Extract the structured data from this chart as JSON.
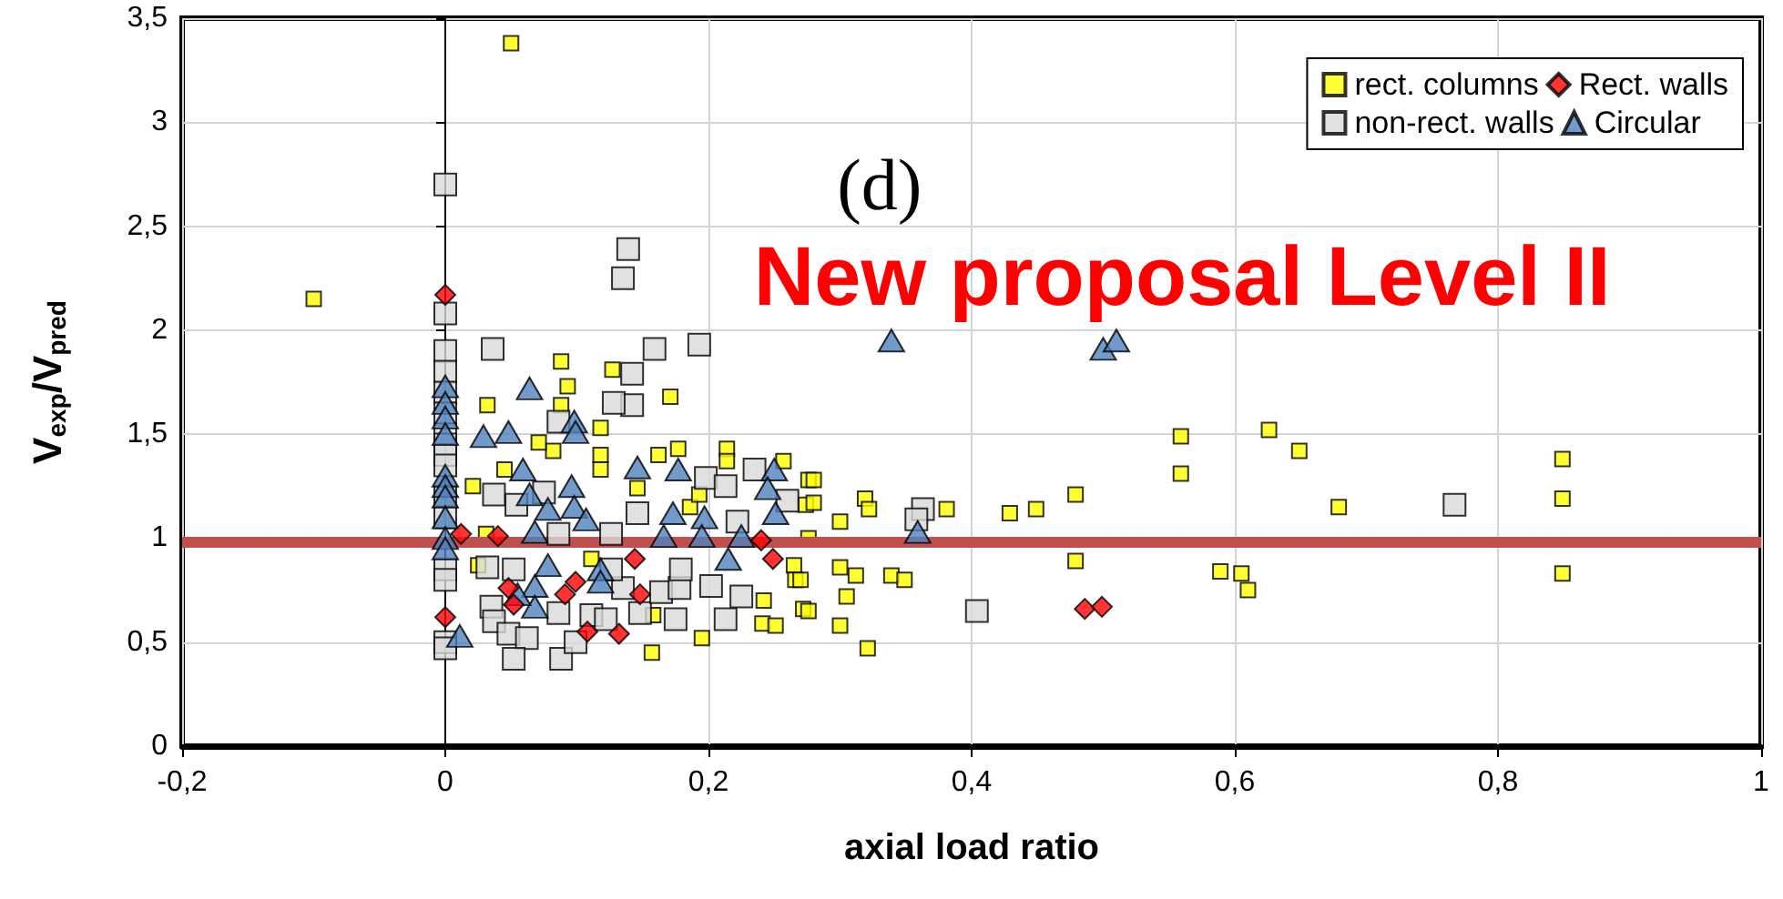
{
  "chart_data": {
    "type": "scatter",
    "xlabel": "axial load ratio",
    "ylabel": "V$_{exp}$/V$_{pred}$",
    "annotations": [
      "(d)",
      "New proposal Level II"
    ],
    "xlim": [
      -0.2,
      1
    ],
    "ylim": [
      0,
      3.5
    ],
    "xticks": [
      {
        "value": -0.2,
        "label": "-0,2"
      },
      0,
      {
        "value": 0.2,
        "label": "0,2"
      },
      {
        "value": 0.4,
        "label": "0,4"
      },
      {
        "value": 0.6,
        "label": "0,6"
      },
      {
        "value": 0.8,
        "label": "0,8"
      },
      1
    ],
    "yticks": [
      0,
      {
        "value": 0.5,
        "label": "0,5"
      },
      1,
      {
        "value": 1.5,
        "label": "1,5"
      },
      2,
      {
        "value": 2.5,
        "label": "2,5"
      },
      3,
      {
        "value": 3.5,
        "label": "3,5"
      }
    ],
    "grid": true,
    "legend": "top right",
    "ref_lines": [
      {
        "axis": "y",
        "value": 0.98,
        "color": "#c0504d"
      }
    ],
    "series": [
      {
        "name": "rect. columns",
        "color": "#ffff00",
        "marker": "square",
        "x": [
          -0.1,
          0.05,
          0.088,
          0.093,
          0.088,
          0.032,
          0.127,
          0.171,
          0.118,
          0.118,
          0.118,
          0.082,
          0.071,
          0.021,
          0.031,
          0.177,
          0.162,
          0.214,
          0.214,
          0.257,
          0.276,
          0.274,
          0.276,
          0.265,
          0.266,
          0.242,
          0.241,
          0.251,
          0.272,
          0.195,
          0.157,
          0.158,
          0.111,
          0.045,
          0.025,
          0.186,
          0.193,
          0.146,
          0.559,
          0.559,
          0.626,
          0.649,
          0.679,
          0.589,
          0.605,
          0.61,
          0.849,
          0.849,
          0.849,
          0.479,
          0.479,
          0.429,
          0.449,
          0.381,
          0.339,
          0.349,
          0.321,
          0.305,
          0.3,
          0.3,
          0.28,
          0.28,
          0.319,
          0.322,
          0.27,
          0.276,
          0.3,
          0.312
        ],
        "values": [
          2.15,
          3.38,
          1.85,
          1.73,
          1.64,
          1.64,
          1.81,
          1.68,
          1.53,
          1.4,
          1.33,
          1.42,
          1.46,
          1.25,
          1.02,
          1.43,
          1.4,
          1.43,
          1.37,
          1.37,
          1.28,
          1.16,
          1.0,
          0.87,
          0.8,
          0.7,
          0.59,
          0.58,
          0.66,
          0.52,
          0.45,
          0.63,
          0.9,
          1.33,
          0.87,
          1.15,
          1.21,
          1.24,
          1.49,
          1.31,
          1.52,
          1.42,
          1.15,
          0.84,
          0.83,
          0.75,
          1.38,
          1.19,
          0.83,
          1.21,
          0.89,
          1.12,
          1.14,
          1.14,
          0.82,
          0.8,
          0.47,
          0.72,
          0.86,
          1.08,
          1.28,
          1.17,
          1.19,
          1.14,
          0.8,
          0.65,
          0.58,
          0.82
        ]
      },
      {
        "name": "Rect. walls",
        "color": "#ff0000",
        "marker": "diamond",
        "x": [
          0,
          0,
          0.012,
          0.04,
          0.144,
          0.132,
          0.108,
          0.048,
          0.091,
          0.099,
          0.249,
          0.24,
          0.148,
          0.052,
          0.486,
          0.499
        ],
        "values": [
          2.17,
          0.62,
          1.02,
          1.01,
          0.9,
          0.54,
          0.55,
          0.76,
          0.73,
          0.79,
          0.9,
          0.99,
          0.73,
          0.68,
          0.66,
          0.67
        ]
      },
      {
        "name": "non-rect. walls",
        "color": "#d9d9d9",
        "marker": "square",
        "x": [
          0,
          0,
          0,
          0,
          0,
          0,
          0,
          0,
          0,
          0,
          0,
          0,
          0,
          0,
          0,
          0,
          0.036,
          0.159,
          0.193,
          0.135,
          0.139,
          0.142,
          0.142,
          0.128,
          0.086,
          0.037,
          0.054,
          0.075,
          0.146,
          0.126,
          0.198,
          0.213,
          0.235,
          0.26,
          0.222,
          0.032,
          0.052,
          0.035,
          0.037,
          0.048,
          0.062,
          0.052,
          0.088,
          0.086,
          0.099,
          0.111,
          0.122,
          0.135,
          0.148,
          0.164,
          0.178,
          0.179,
          0.202,
          0.213,
          0.225,
          0.175,
          0.126,
          0.086,
          0.363,
          0.358,
          0.404,
          0.767
        ],
        "values": [
          2.7,
          2.08,
          1.9,
          1.8,
          1.7,
          1.6,
          1.5,
          1.45,
          1.4,
          1.35,
          1.2,
          1.1,
          0.85,
          0.8,
          0.5,
          0.47,
          1.91,
          1.91,
          1.93,
          2.25,
          2.39,
          1.79,
          1.64,
          1.65,
          1.56,
          1.21,
          1.16,
          1.22,
          1.12,
          1.02,
          1.29,
          1.25,
          1.33,
          1.18,
          1.08,
          0.86,
          0.85,
          0.67,
          0.6,
          0.54,
          0.52,
          0.42,
          0.42,
          0.64,
          0.5,
          0.63,
          0.61,
          0.76,
          0.64,
          0.74,
          0.76,
          0.85,
          0.77,
          0.61,
          0.72,
          0.61,
          0.85,
          1.02,
          1.14,
          1.09,
          0.65,
          1.16
        ]
      },
      {
        "name": "Circular",
        "color": "#4f81bd",
        "marker": "triangle",
        "x": [
          0,
          0,
          0,
          0,
          0,
          0,
          0,
          0,
          0,
          0,
          0.011,
          0.064,
          0.029,
          0.048,
          0.098,
          0.099,
          0.059,
          0.064,
          0.078,
          0.096,
          0.098,
          0.107,
          0.146,
          0.177,
          0.173,
          0.197,
          0.245,
          0.25,
          0.245,
          0.251,
          0.225,
          0.215,
          0.195,
          0.166,
          0.118,
          0.118,
          0.078,
          0.068,
          0.068,
          0.055,
          0.068,
          0.339,
          0.5,
          0.51,
          0.359
        ],
        "values": [
          1.73,
          1.65,
          1.58,
          1.5,
          1.3,
          1.25,
          1.2,
          1.1,
          1.0,
          0.95,
          0.53,
          1.72,
          1.49,
          1.51,
          1.56,
          1.51,
          1.33,
          1.21,
          1.14,
          1.25,
          1.15,
          1.09,
          1.34,
          1.33,
          1.12,
          1.1,
          null,
          1.33,
          1.24,
          1.12,
          1.01,
          0.9,
          1.01,
          1.01,
          0.85,
          0.79,
          0.87,
          0.77,
          0.67,
          0.73,
          1.03,
          1.95,
          1.91,
          1.95,
          1.03
        ]
      }
    ]
  }
}
